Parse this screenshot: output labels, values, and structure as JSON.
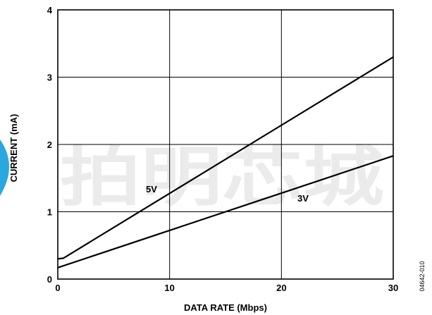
{
  "chart_data": {
    "type": "line",
    "xlabel": "DATA RATE (Mbps)",
    "ylabel": "CURRENT (mA)",
    "xlim": [
      0,
      30
    ],
    "ylim": [
      0,
      4
    ],
    "x_ticks": [
      "0",
      "10",
      "20",
      "30"
    ],
    "y_ticks": [
      "0",
      "1",
      "2",
      "3",
      "4"
    ],
    "grid": true,
    "series": [
      {
        "name": "5V",
        "x": [
          0,
          0.5,
          30
        ],
        "y": [
          0.3,
          0.31,
          3.3
        ]
      },
      {
        "name": "3V",
        "x": [
          0,
          30
        ],
        "y": [
          0.17,
          1.83
        ]
      }
    ],
    "line_color": "#000000",
    "grid_color": "#000000"
  },
  "watermark": "拍明芯城",
  "figure_id": "04642-010",
  "accent_color": "#2aa7e0"
}
